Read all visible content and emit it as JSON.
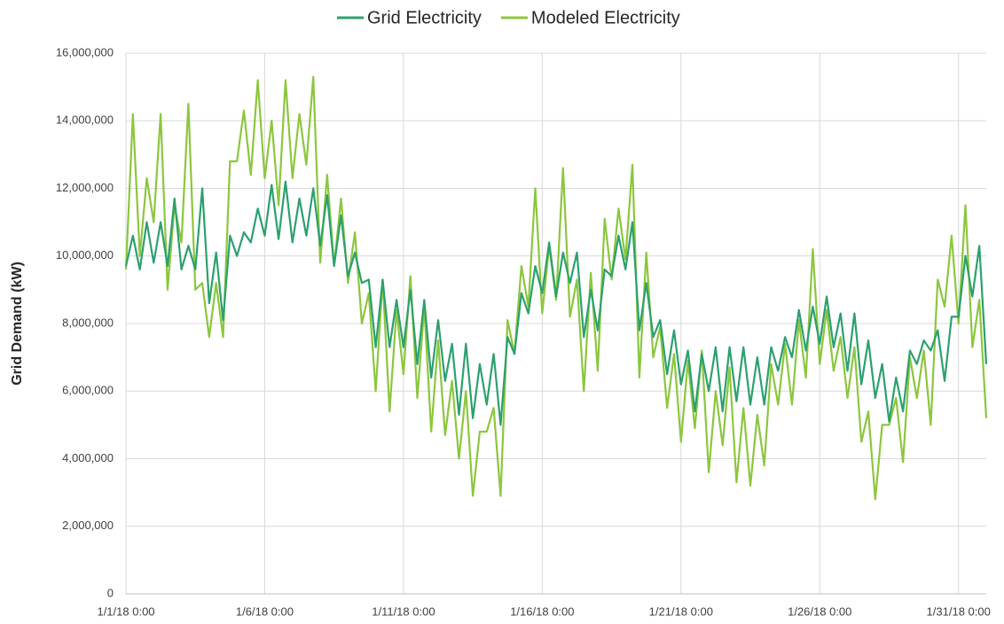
{
  "chart_data": {
    "type": "line",
    "y_label": "Grid Demand (kW)",
    "x": [
      "1/1/18 0:00",
      "1/1/18 6:00",
      "1/1/18 12:00",
      "1/1/18 18:00",
      "1/2/18 0:00",
      "1/2/18 6:00",
      "1/2/18 12:00",
      "1/2/18 18:00",
      "1/3/18 0:00",
      "1/3/18 6:00",
      "1/3/18 12:00",
      "1/3/18 18:00",
      "1/4/18 0:00",
      "1/4/18 6:00",
      "1/4/18 12:00",
      "1/4/18 18:00",
      "1/5/18 0:00",
      "1/5/18 6:00",
      "1/5/18 12:00",
      "1/5/18 18:00",
      "1/6/18 0:00",
      "1/6/18 6:00",
      "1/6/18 12:00",
      "1/6/18 18:00",
      "1/7/18 0:00",
      "1/7/18 6:00",
      "1/7/18 12:00",
      "1/7/18 18:00",
      "1/8/18 0:00",
      "1/8/18 6:00",
      "1/8/18 12:00",
      "1/8/18 18:00",
      "1/9/18 0:00",
      "1/9/18 6:00",
      "1/9/18 12:00",
      "1/9/18 18:00",
      "1/10/18 0:00",
      "1/10/18 6:00",
      "1/10/18 12:00",
      "1/10/18 18:00",
      "1/11/18 0:00",
      "1/11/18 6:00",
      "1/11/18 12:00",
      "1/11/18 18:00",
      "1/12/18 0:00",
      "1/12/18 6:00",
      "1/12/18 12:00",
      "1/12/18 18:00",
      "1/13/18 0:00",
      "1/13/18 6:00",
      "1/13/18 12:00",
      "1/13/18 18:00",
      "1/14/18 0:00",
      "1/14/18 6:00",
      "1/14/18 12:00",
      "1/14/18 18:00",
      "1/15/18 0:00",
      "1/15/18 6:00",
      "1/15/18 12:00",
      "1/15/18 18:00",
      "1/16/18 0:00",
      "1/16/18 6:00",
      "1/16/18 12:00",
      "1/16/18 18:00",
      "1/17/18 0:00",
      "1/17/18 6:00",
      "1/17/18 12:00",
      "1/17/18 18:00",
      "1/18/18 0:00",
      "1/18/18 6:00",
      "1/18/18 12:00",
      "1/18/18 18:00",
      "1/19/18 0:00",
      "1/19/18 6:00",
      "1/19/18 12:00",
      "1/19/18 18:00",
      "1/20/18 0:00",
      "1/20/18 6:00",
      "1/20/18 12:00",
      "1/20/18 18:00",
      "1/21/18 0:00",
      "1/21/18 6:00",
      "1/21/18 12:00",
      "1/21/18 18:00",
      "1/22/18 0:00",
      "1/22/18 6:00",
      "1/22/18 12:00",
      "1/22/18 18:00",
      "1/23/18 0:00",
      "1/23/18 6:00",
      "1/23/18 12:00",
      "1/23/18 18:00",
      "1/24/18 0:00",
      "1/24/18 6:00",
      "1/24/18 12:00",
      "1/24/18 18:00",
      "1/25/18 0:00",
      "1/25/18 6:00",
      "1/25/18 12:00",
      "1/25/18 18:00",
      "1/26/18 0:00",
      "1/26/18 6:00",
      "1/26/18 12:00",
      "1/26/18 18:00",
      "1/27/18 0:00",
      "1/27/18 6:00",
      "1/27/18 12:00",
      "1/27/18 18:00",
      "1/28/18 0:00",
      "1/28/18 6:00",
      "1/28/18 12:00",
      "1/28/18 18:00",
      "1/29/18 0:00",
      "1/29/18 6:00",
      "1/29/18 12:00",
      "1/29/18 18:00",
      "1/30/18 0:00",
      "1/30/18 6:00",
      "1/30/18 12:00",
      "1/30/18 18:00",
      "1/31/18 0:00",
      "1/31/18 6:00",
      "1/31/18 12:00",
      "1/31/18 18:00",
      "2/1/18 0:00"
    ],
    "xticks": [
      "1/1/18 0:00",
      "1/6/18 0:00",
      "1/11/18 0:00",
      "1/16/18 0:00",
      "1/21/18 0:00",
      "1/26/18 0:00",
      "1/31/18 0:00"
    ],
    "ylim": [
      0,
      16000000
    ],
    "yticks": [
      0,
      {
        "value": 2000000,
        "label": "2,000,000"
      },
      {
        "value": 4000000,
        "label": "4,000,000"
      },
      {
        "value": 6000000,
        "label": "6,000,000"
      },
      {
        "value": 8000000,
        "label": "8,000,000"
      },
      {
        "value": 10000000,
        "label": "10,000,000"
      },
      {
        "value": 12000000,
        "label": "12,000,000"
      },
      {
        "value": 14000000,
        "label": "14,000,000"
      },
      {
        "value": 16000000,
        "label": "16,000,000"
      }
    ],
    "grid": true,
    "legend": "top",
    "series": [
      {
        "name": "Grid Electricity",
        "color": "#2ca06e",
        "values": [
          9700000,
          10600000,
          9600000,
          11000000,
          9800000,
          11000000,
          9700000,
          11700000,
          9600000,
          10300000,
          9600000,
          12000000,
          8600000,
          10100000,
          8100000,
          10600000,
          10000000,
          10700000,
          10400000,
          11400000,
          10600000,
          12100000,
          10500000,
          12200000,
          10400000,
          11700000,
          10600000,
          12000000,
          10300000,
          11800000,
          9700000,
          11200000,
          9400000,
          10100000,
          9200000,
          9300000,
          7300000,
          9300000,
          7300000,
          8700000,
          7300000,
          9000000,
          6800000,
          8700000,
          6400000,
          8100000,
          6300000,
          7400000,
          5300000,
          7400000,
          5200000,
          6800000,
          5600000,
          7100000,
          5000000,
          7600000,
          7100000,
          8900000,
          8300000,
          9700000,
          8900000,
          10400000,
          8800000,
          10100000,
          9200000,
          10100000,
          7600000,
          9000000,
          7800000,
          9600000,
          9400000,
          10600000,
          9600000,
          11000000,
          7800000,
          9200000,
          7600000,
          8100000,
          6500000,
          7800000,
          6200000,
          7200000,
          5400000,
          7100000,
          6000000,
          7300000,
          5400000,
          7300000,
          5700000,
          7300000,
          5600000,
          7000000,
          5600000,
          7300000,
          6600000,
          7600000,
          7000000,
          8400000,
          7200000,
          8500000,
          7400000,
          8800000,
          7300000,
          8300000,
          6600000,
          8300000,
          6200000,
          7500000,
          5800000,
          6800000,
          5100000,
          6400000,
          5400000,
          7200000,
          6800000,
          7500000,
          7200000,
          7800000,
          6300000,
          8200000,
          8200000,
          10000000,
          8800000,
          10300000,
          6800000
        ]
      },
      {
        "name": "Modeled Electricity",
        "color": "#8cc63e",
        "values": [
          9600000,
          14200000,
          10000000,
          12300000,
          11000000,
          14200000,
          9000000,
          11500000,
          10400000,
          14500000,
          9000000,
          9200000,
          7600000,
          9200000,
          7600000,
          12800000,
          12800000,
          14300000,
          12400000,
          15200000,
          12300000,
          14000000,
          11500000,
          15200000,
          12300000,
          14200000,
          12700000,
          15300000,
          9800000,
          12400000,
          9700000,
          11700000,
          9200000,
          10700000,
          8000000,
          8900000,
          6000000,
          9300000,
          5400000,
          8400000,
          6500000,
          9400000,
          5800000,
          8500000,
          4800000,
          7500000,
          4700000,
          6300000,
          4000000,
          6000000,
          2900000,
          4800000,
          4800000,
          5500000,
          2900000,
          8100000,
          7100000,
          9700000,
          8500000,
          12000000,
          8300000,
          10300000,
          8700000,
          12600000,
          8200000,
          9300000,
          6000000,
          9500000,
          6600000,
          11100000,
          9300000,
          11400000,
          9900000,
          12700000,
          6400000,
          10100000,
          7000000,
          7900000,
          5500000,
          7100000,
          4500000,
          6900000,
          4900000,
          7200000,
          3600000,
          6000000,
          4400000,
          6700000,
          3300000,
          5500000,
          3200000,
          5300000,
          3800000,
          6800000,
          5600000,
          7400000,
          5600000,
          8100000,
          6400000,
          10200000,
          6800000,
          8400000,
          6600000,
          7600000,
          5800000,
          7300000,
          4500000,
          5400000,
          2800000,
          5000000,
          5000000,
          5800000,
          3900000,
          7000000,
          5800000,
          7200000,
          5000000,
          9300000,
          8500000,
          10600000,
          8000000,
          11500000,
          7300000,
          8700000,
          5200000
        ]
      }
    ]
  }
}
